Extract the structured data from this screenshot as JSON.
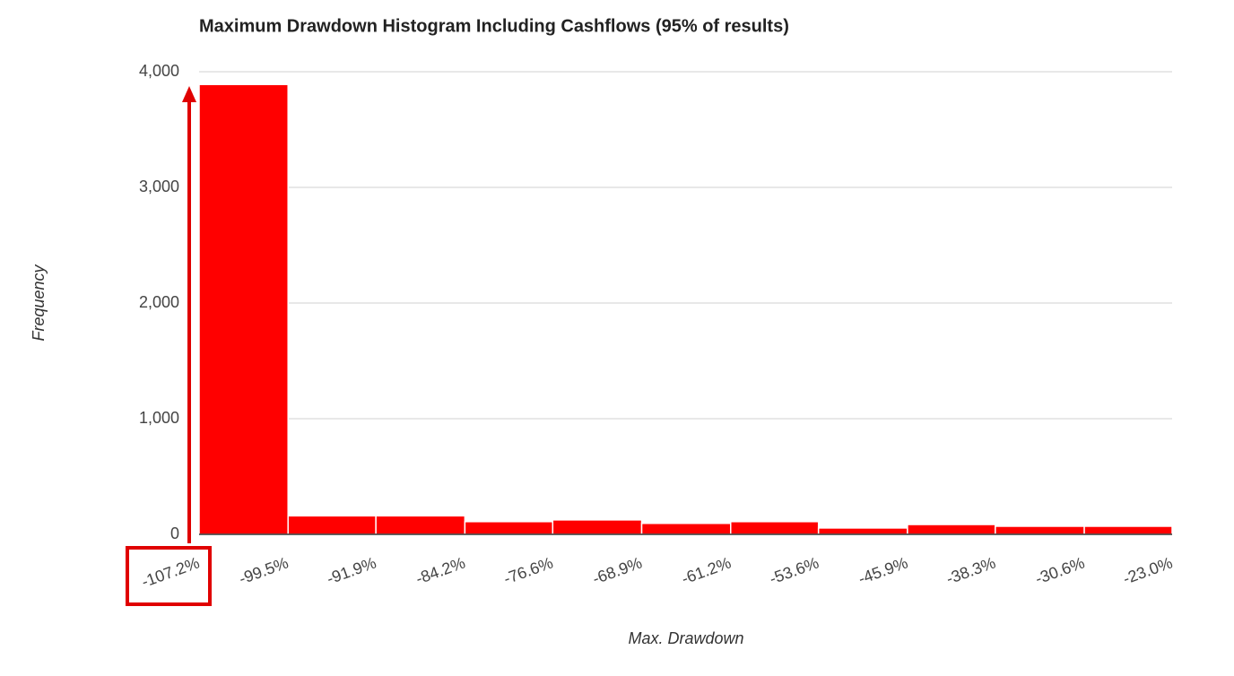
{
  "chart_data": {
    "type": "histogram",
    "title": "Maximum Drawdown Histogram Including Cashflows (95% of results)",
    "x_label": "Max. Drawdown",
    "y_label": "Frequency",
    "bins": [
      -107.2,
      -99.5,
      -91.9,
      -84.2,
      -76.6,
      -68.9,
      -61.2,
      -53.6,
      -45.9,
      -38.3,
      -30.6,
      -23.0
    ],
    "values": [
      3890,
      160,
      160,
      110,
      125,
      95,
      110,
      55,
      85,
      70,
      70
    ],
    "color": "#ff0000",
    "xlim": [
      -107.2,
      -23.0
    ],
    "xticks": [
      {
        "value": -107.2,
        "label": "-107.2%"
      },
      {
        "value": -99.5,
        "label": "-99.5%"
      },
      {
        "value": -91.9,
        "label": "-91.9%"
      },
      {
        "value": -84.2,
        "label": "-84.2%"
      },
      {
        "value": -76.6,
        "label": "-76.6%"
      },
      {
        "value": -68.9,
        "label": "-68.9%"
      },
      {
        "value": -61.2,
        "label": "-61.2%"
      },
      {
        "value": -53.6,
        "label": "-53.6%"
      },
      {
        "value": -45.9,
        "label": "-45.9%"
      },
      {
        "value": -38.3,
        "label": "-38.3%"
      },
      {
        "value": -30.6,
        "label": "-30.6%"
      },
      {
        "value": -23.0,
        "label": "-23.0%"
      }
    ],
    "ylim": [
      0,
      4000
    ],
    "yticks": [
      0,
      {
        "value": 1000,
        "label": "1,000"
      },
      {
        "value": 2000,
        "label": "2,000"
      },
      {
        "value": 3000,
        "label": "3,000"
      },
      {
        "value": 4000,
        "label": "4,000"
      }
    ],
    "grid": true
  }
}
